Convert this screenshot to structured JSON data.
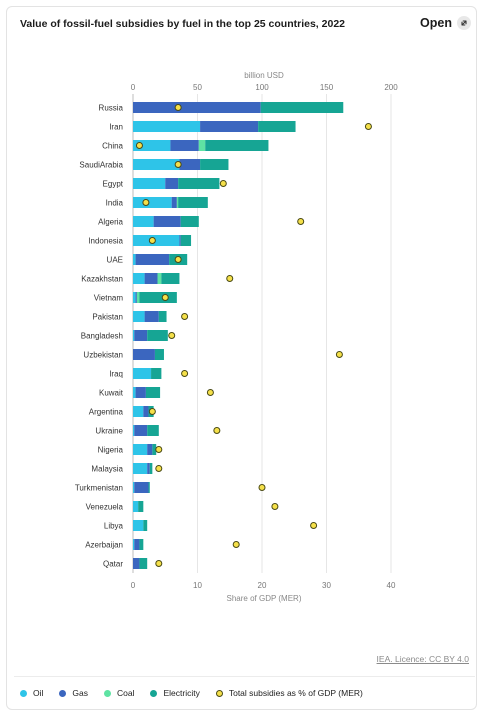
{
  "header": {
    "title": "Value of fossil-fuel subsidies by fuel in the top 25 countries, 2022",
    "open_label": "Open",
    "open_icon": "expand-arrow-icon"
  },
  "credit": "IEA. Licence: CC BY 4.0",
  "colors": {
    "oil": "#2ec4e8",
    "gas": "#3b66bf",
    "coal": "#5ee3a3",
    "electricity": "#16a594",
    "marker_fill": "#f5e04a",
    "marker_stroke": "#4a4a14"
  },
  "chart_data": {
    "type": "bar",
    "orientation": "horizontal",
    "stacked": true,
    "top_axis_label": "billion USD",
    "top_axis_ticks": [
      "0",
      "50",
      "100",
      "150",
      "200"
    ],
    "top_axis_range": [
      0,
      200
    ],
    "bottom_axis_label": "Share of GDP (MER)",
    "bottom_axis_ticks": [
      "0",
      "10",
      "20",
      "30",
      "40"
    ],
    "bottom_axis_range": [
      0,
      40
    ],
    "categories": [
      "Russia",
      "Iran",
      "China",
      "SaudiArabia",
      "Egypt",
      "India",
      "Algeria",
      "Indonesia",
      "UAE",
      "Kazakhstan",
      "Vietnam",
      "Pakistan",
      "Bangladesh",
      "Uzbekistan",
      "Iraq",
      "Kuwait",
      "Argentina",
      "Ukraine",
      "Nigeria",
      "Malaysia",
      "Turkmenistan",
      "Venezuela",
      "Libya",
      "Azerbaijan",
      "Qatar"
    ],
    "series": [
      {
        "name": "Oil",
        "color_key": "oil",
        "axis": "top",
        "values": [
          0,
          52,
          29,
          36,
          25,
          30,
          16,
          36,
          2,
          9,
          2,
          9,
          1,
          0,
          14,
          2,
          8,
          1,
          11,
          11,
          1,
          4,
          8,
          1,
          0
        ]
      },
      {
        "name": "Gas",
        "color_key": "gas",
        "axis": "top",
        "values": [
          99,
          45,
          22,
          16,
          10,
          4,
          21,
          1,
          26,
          10,
          1,
          11,
          10,
          17,
          0,
          8,
          4,
          10,
          4,
          2,
          11,
          0,
          0,
          4,
          5
        ]
      },
      {
        "name": "Coal",
        "color_key": "coal",
        "axis": "top",
        "values": [
          0,
          0,
          5,
          0,
          0,
          1,
          0,
          0,
          0,
          3,
          2,
          0,
          0,
          0,
          0,
          0,
          0,
          0,
          0,
          0,
          0,
          0,
          0,
          0,
          0
        ]
      },
      {
        "name": "Electricity",
        "color_key": "electricity",
        "axis": "top",
        "values": [
          64,
          29,
          49,
          22,
          32,
          23,
          14,
          8,
          14,
          14,
          29,
          6,
          16,
          7,
          8,
          11,
          4,
          9,
          3,
          2,
          1,
          4,
          3,
          3,
          6
        ]
      },
      {
        "name": "Total subsidies as % of GDP (MER)",
        "color_key": "marker_fill",
        "axis": "bottom",
        "type": "scatter",
        "values": [
          7,
          36.5,
          1,
          7,
          14,
          2,
          26,
          3,
          7,
          15,
          5,
          8,
          6,
          32,
          8,
          12,
          3,
          13,
          4,
          4,
          20,
          22,
          28,
          16,
          4
        ]
      }
    ],
    "grid": true,
    "legend_position": "bottom"
  }
}
